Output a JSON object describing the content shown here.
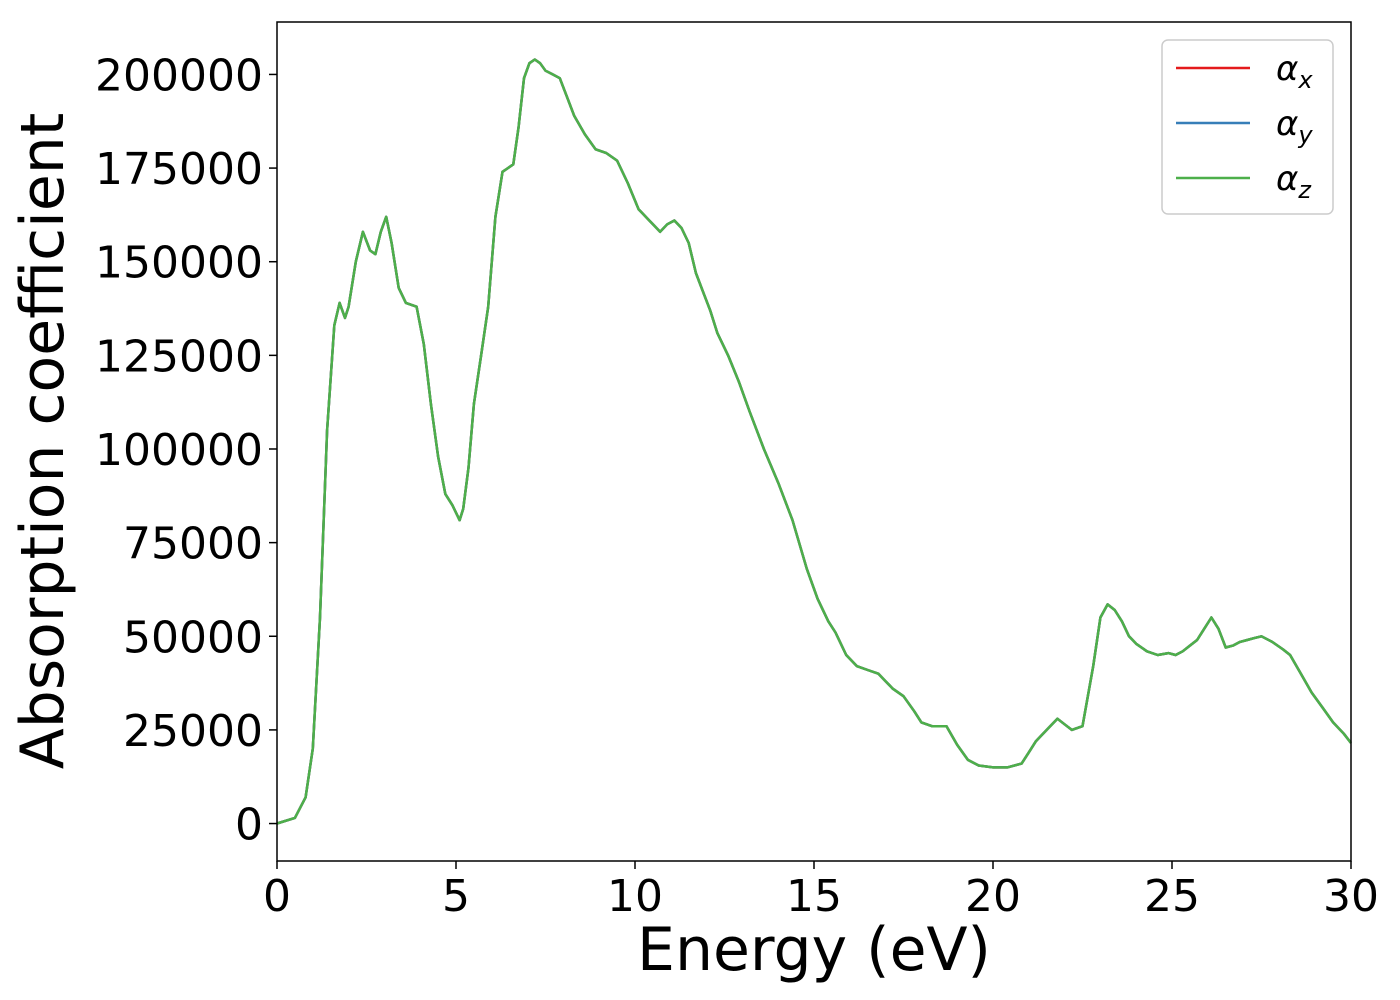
{
  "chart_data": {
    "type": "line",
    "title": "",
    "xlabel": "Energy (eV)",
    "ylabel": "Absorption coefficient",
    "xlim": [
      0,
      30
    ],
    "ylim": [
      -10000,
      214000
    ],
    "xticks": [
      0,
      5,
      10,
      15,
      20,
      25,
      30
    ],
    "yticks": [
      0,
      25000,
      50000,
      75000,
      100000,
      125000,
      150000,
      175000,
      200000
    ],
    "grid": false,
    "legend_position": "top-right",
    "x": [
      0,
      0.5,
      0.8,
      1.0,
      1.2,
      1.4,
      1.6,
      1.75,
      1.9,
      2.0,
      2.2,
      2.4,
      2.6,
      2.75,
      2.9,
      3.05,
      3.2,
      3.4,
      3.6,
      3.9,
      4.1,
      4.3,
      4.5,
      4.7,
      4.9,
      5.1,
      5.2,
      5.35,
      5.5,
      5.7,
      5.9,
      6.1,
      6.3,
      6.45,
      6.6,
      6.75,
      6.9,
      7.05,
      7.2,
      7.35,
      7.5,
      7.7,
      7.9,
      8.1,
      8.3,
      8.6,
      8.9,
      9.2,
      9.5,
      9.8,
      10.1,
      10.4,
      10.7,
      10.9,
      11.1,
      11.3,
      11.5,
      11.7,
      11.9,
      12.1,
      12.3,
      12.6,
      12.9,
      13.2,
      13.6,
      14.0,
      14.4,
      14.8,
      15.1,
      15.4,
      15.6,
      15.9,
      16.2,
      16.5,
      16.8,
      17.0,
      17.2,
      17.5,
      17.8,
      18.0,
      18.3,
      18.7,
      19.0,
      19.3,
      19.6,
      20.0,
      20.4,
      20.8,
      21.0,
      21.2,
      21.5,
      21.8,
      22.0,
      22.2,
      22.5,
      22.8,
      23.0,
      23.2,
      23.4,
      23.6,
      23.8,
      24.0,
      24.3,
      24.6,
      24.9,
      25.1,
      25.3,
      25.5,
      25.7,
      25.9,
      26.1,
      26.3,
      26.5,
      26.7,
      26.9,
      27.1,
      27.3,
      27.5,
      27.8,
      28.1,
      28.3,
      28.6,
      28.9,
      29.2,
      29.5,
      29.8,
      30.0
    ],
    "series": [
      {
        "name": "α_x",
        "color": "#e41a1c",
        "values": [
          0,
          1500,
          7000,
          20000,
          55000,
          105000,
          133000,
          139000,
          135000,
          138000,
          150000,
          158000,
          153000,
          152000,
          158000,
          162000,
          155000,
          143000,
          139000,
          138000,
          128000,
          112000,
          98000,
          88000,
          85000,
          81000,
          84000,
          95000,
          112000,
          125000,
          138000,
          162000,
          174000,
          175000,
          176000,
          186000,
          199000,
          203000,
          204000,
          203000,
          201000,
          200000,
          199000,
          194000,
          189000,
          184000,
          180000,
          179000,
          177000,
          171000,
          164000,
          161000,
          158000,
          160000,
          161000,
          159000,
          155000,
          147000,
          142000,
          137000,
          131000,
          125000,
          118000,
          110000,
          100000,
          91000,
          81000,
          68000,
          60000,
          54000,
          51000,
          45000,
          42000,
          41000,
          40000,
          38000,
          36000,
          34000,
          30000,
          27000,
          26000,
          26000,
          21000,
          17000,
          15500,
          15000,
          15000,
          16000,
          19000,
          22000,
          25000,
          28000,
          26500,
          25000,
          26000,
          42000,
          55000,
          58500,
          57000,
          54000,
          50000,
          48000,
          46000,
          45000,
          45500,
          45000,
          46000,
          47500,
          49000,
          52000,
          55000,
          52000,
          47000,
          47500,
          48500,
          49000,
          49500,
          50000,
          48500,
          46500,
          45000,
          40000,
          35000,
          31000,
          27000,
          24000,
          21500
        ]
      },
      {
        "name": "α_y",
        "color": "#377eb8",
        "values": [
          0,
          1500,
          7000,
          20000,
          55000,
          105000,
          133000,
          139000,
          135000,
          138000,
          150000,
          158000,
          153000,
          152000,
          158000,
          162000,
          155000,
          143000,
          139000,
          138000,
          128000,
          112000,
          98000,
          88000,
          85000,
          81000,
          84000,
          95000,
          112000,
          125000,
          138000,
          162000,
          174000,
          175000,
          176000,
          186000,
          199000,
          203000,
          204000,
          203000,
          201000,
          200000,
          199000,
          194000,
          189000,
          184000,
          180000,
          179000,
          177000,
          171000,
          164000,
          161000,
          158000,
          160000,
          161000,
          159000,
          155000,
          147000,
          142000,
          137000,
          131000,
          125000,
          118000,
          110000,
          100000,
          91000,
          81000,
          68000,
          60000,
          54000,
          51000,
          45000,
          42000,
          41000,
          40000,
          38000,
          36000,
          34000,
          30000,
          27000,
          26000,
          26000,
          21000,
          17000,
          15500,
          15000,
          15000,
          16000,
          19000,
          22000,
          25000,
          28000,
          26500,
          25000,
          26000,
          42000,
          55000,
          58500,
          57000,
          54000,
          50000,
          48000,
          46000,
          45000,
          45500,
          45000,
          46000,
          47500,
          49000,
          52000,
          55000,
          52000,
          47000,
          47500,
          48500,
          49000,
          49500,
          50000,
          48500,
          46500,
          45000,
          40000,
          35000,
          31000,
          27000,
          24000,
          21500
        ]
      },
      {
        "name": "α_z",
        "color": "#4daf4a",
        "values": [
          0,
          1500,
          7000,
          20000,
          55000,
          105000,
          133000,
          139000,
          135000,
          138000,
          150000,
          158000,
          153000,
          152000,
          158000,
          162000,
          155000,
          143000,
          139000,
          138000,
          128000,
          112000,
          98000,
          88000,
          85000,
          81000,
          84000,
          95000,
          112000,
          125000,
          138000,
          162000,
          174000,
          175000,
          176000,
          186000,
          199000,
          203000,
          204000,
          203000,
          201000,
          200000,
          199000,
          194000,
          189000,
          184000,
          180000,
          179000,
          177000,
          171000,
          164000,
          161000,
          158000,
          160000,
          161000,
          159000,
          155000,
          147000,
          142000,
          137000,
          131000,
          125000,
          118000,
          110000,
          100000,
          91000,
          81000,
          68000,
          60000,
          54000,
          51000,
          45000,
          42000,
          41000,
          40000,
          38000,
          36000,
          34000,
          30000,
          27000,
          26000,
          26000,
          21000,
          17000,
          15500,
          15000,
          15000,
          16000,
          19000,
          22000,
          25000,
          28000,
          26500,
          25000,
          26000,
          42000,
          55000,
          58500,
          57000,
          54000,
          50000,
          48000,
          46000,
          45000,
          45500,
          45000,
          46000,
          47500,
          49000,
          52000,
          55000,
          52000,
          47000,
          47500,
          48500,
          49000,
          49500,
          50000,
          48500,
          46500,
          45000,
          40000,
          35000,
          31000,
          27000,
          24000,
          21500
        ]
      }
    ],
    "legend": [
      {
        "symbol": "α",
        "sub": "x",
        "color": "#e41a1c"
      },
      {
        "symbol": "α",
        "sub": "y",
        "color": "#377eb8"
      },
      {
        "symbol": "α",
        "sub": "z",
        "color": "#4daf4a"
      }
    ]
  }
}
